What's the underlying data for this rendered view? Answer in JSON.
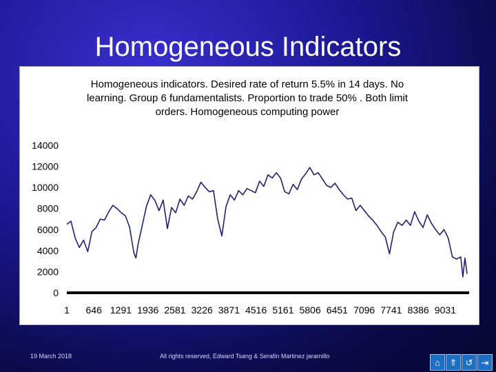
{
  "slide": {
    "title": "Homogeneous Indicators",
    "footer_date": "19 March 2018",
    "footer_credit": "All rights reserved, Edward Tsang & Serafin Martinez jaramillo"
  },
  "nav": {
    "icons": [
      "home-icon",
      "up-icon",
      "return-icon",
      "end-icon"
    ],
    "glyphs": [
      "⌂",
      "⇑",
      "↺",
      "⇥"
    ]
  },
  "colors": {
    "line": "#1f1f6e",
    "background_slide": "#1a178f"
  },
  "chart_data": {
    "type": "line",
    "title": [
      "Homogeneous indicators. Desired rate of return 5.5% in 14 days. No",
      "learning. Group 6 fundamentalists. Proportion to trade 50% . Both limit",
      "orders. Homogeneous computing power"
    ],
    "xlabel": "",
    "ylabel": "",
    "xlim": [
      1,
      9600
    ],
    "ylim": [
      0,
      14000
    ],
    "x_ticks": [
      1,
      646,
      1291,
      1936,
      2581,
      3226,
      3871,
      4516,
      5161,
      5806,
      6451,
      7096,
      7741,
      8386,
      9031
    ],
    "y_ticks": [
      0,
      2000,
      4000,
      6000,
      8000,
      10000,
      12000,
      14000
    ],
    "grid": false,
    "legend": "none",
    "series": [
      {
        "x": [
          1,
          100,
          200,
          300,
          400,
          500,
          600,
          700,
          800,
          900,
          1000,
          1100,
          1200,
          1300,
          1400,
          1500,
          1600,
          1650,
          1700,
          1800,
          1900,
          2000,
          2100,
          2200,
          2300,
          2400,
          2500,
          2600,
          2700,
          2800,
          2900,
          3000,
          3100,
          3200,
          3300,
          3400,
          3500,
          3600,
          3700,
          3800,
          3900,
          4000,
          4100,
          4200,
          4300,
          4400,
          4500,
          4600,
          4700,
          4800,
          4900,
          5000,
          5100,
          5200,
          5300,
          5400,
          5500,
          5600,
          5700,
          5800,
          5900,
          6000,
          6100,
          6200,
          6300,
          6400,
          6500,
          6600,
          6700,
          6800,
          6900,
          7000,
          7100,
          7200,
          7300,
          7400,
          7500,
          7600,
          7700,
          7800,
          7900,
          8000,
          8100,
          8200,
          8300,
          8400,
          8500,
          8600,
          8700,
          8800,
          8900,
          9000,
          9100,
          9200,
          9300,
          9400,
          9450,
          9500,
          9550
        ],
        "values": [
          6500,
          6800,
          5200,
          4300,
          5000,
          3900,
          5800,
          6200,
          7000,
          6900,
          7700,
          8300,
          8000,
          7600,
          7300,
          6200,
          3800,
          3300,
          4600,
          6400,
          8200,
          9300,
          8800,
          7800,
          8800,
          6100,
          8100,
          7600,
          8900,
          8300,
          9200,
          8900,
          9600,
          10500,
          10000,
          9600,
          9700,
          7000,
          5400,
          8200,
          9300,
          8800,
          9700,
          9300,
          9900,
          9700,
          9500,
          10600,
          10100,
          11200,
          10900,
          11400,
          10900,
          9600,
          9400,
          10300,
          9800,
          10800,
          11300,
          11900,
          11200,
          11400,
          10800,
          10200,
          10000,
          10400,
          9800,
          9300,
          8900,
          9000,
          7800,
          8300,
          7800,
          7300,
          6900,
          6400,
          5800,
          5300,
          3700,
          5800,
          6700,
          6400,
          6900,
          6400,
          7700,
          6800,
          6200,
          7400,
          6600,
          6000,
          5500,
          6000,
          5200,
          3400,
          3200,
          3400,
          1500,
          3300,
          1800
        ]
      }
    ]
  }
}
